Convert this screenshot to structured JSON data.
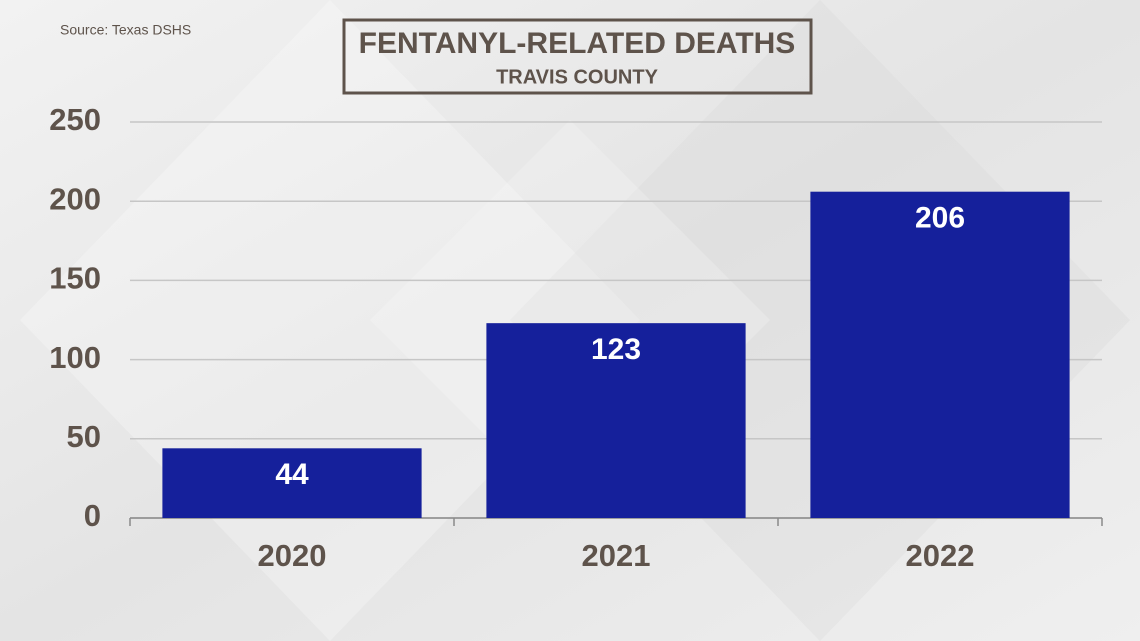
{
  "chart_data": {
    "type": "bar",
    "title": "FENTANYL-RELATED DEATHS",
    "subtitle": "TRAVIS COUNTY",
    "source": "Source: Texas DSHS",
    "categories": [
      "2020",
      "2021",
      "2022"
    ],
    "values": [
      44,
      123,
      206
    ],
    "color": "#15209b",
    "ylim": [
      0,
      250
    ],
    "yticks": [
      0,
      50,
      100,
      150,
      200,
      250
    ],
    "grid": true
  }
}
